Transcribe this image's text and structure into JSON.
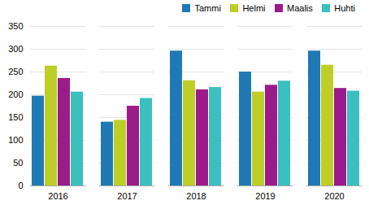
{
  "chart_data": {
    "type": "bar",
    "categories": [
      "2016",
      "2017",
      "2018",
      "2019",
      "2020"
    ],
    "series": [
      {
        "name": "Tammi",
        "color": "#2079B4",
        "values": [
          197,
          140,
          296,
          250,
          296
        ]
      },
      {
        "name": "Helmi",
        "color": "#BDCE27",
        "values": [
          263,
          144,
          231,
          206,
          265
        ]
      },
      {
        "name": "Maalis",
        "color": "#9B1B8A",
        "values": [
          236,
          175,
          211,
          221,
          214
        ]
      },
      {
        "name": "Huhti",
        "color": "#3BBFBF",
        "values": [
          206,
          192,
          216,
          230,
          208
        ]
      }
    ],
    "ylim": [
      0,
      350
    ],
    "yticks": [
      0,
      50,
      100,
      150,
      200,
      250,
      300,
      350
    ],
    "grid": true,
    "legend": "upper right"
  }
}
